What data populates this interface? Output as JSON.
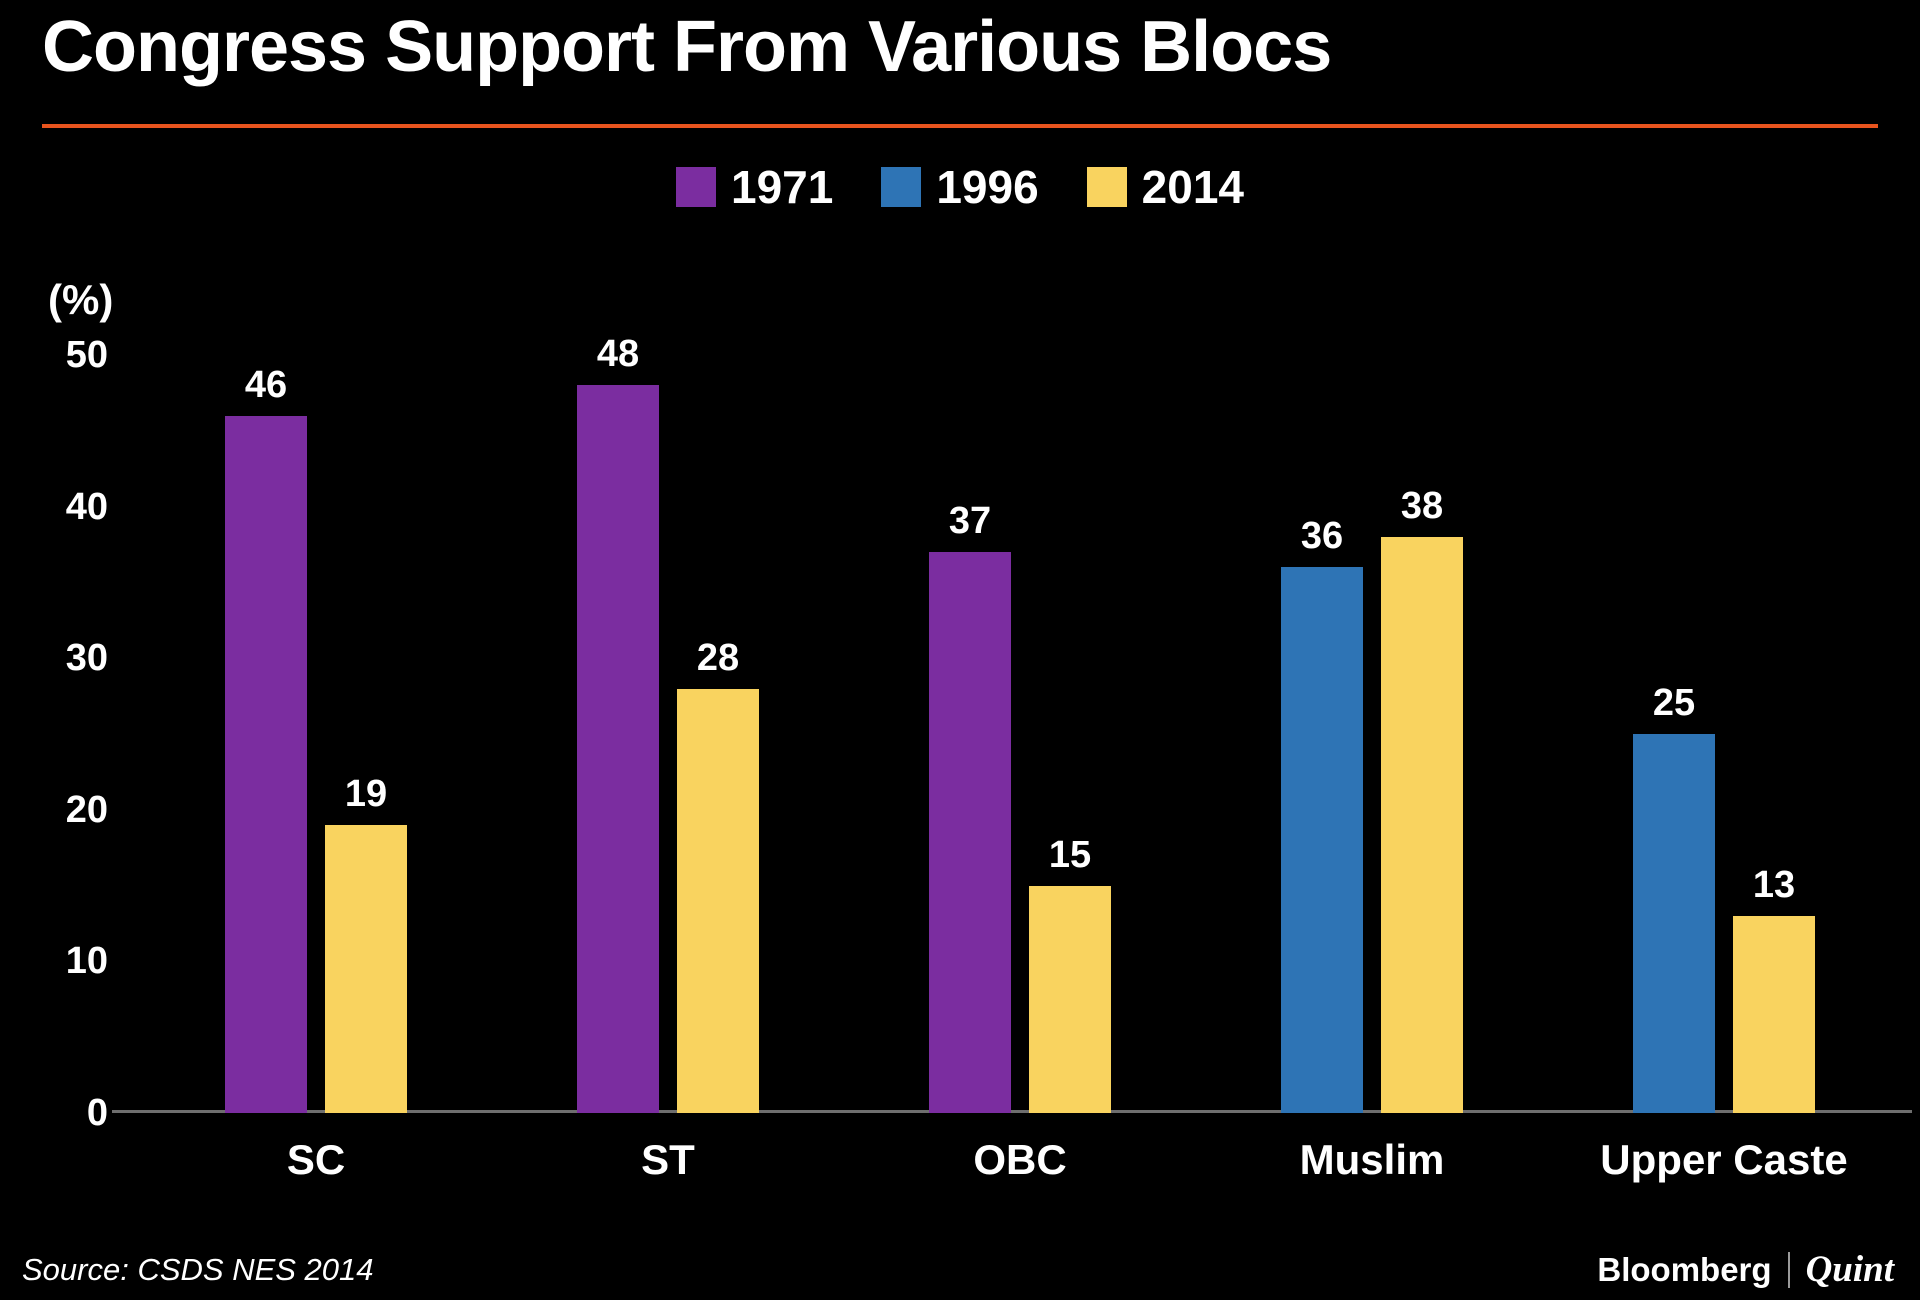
{
  "chart_data": {
    "type": "bar",
    "title": "Congress Support From Various Blocs",
    "categories": [
      "SC",
      "ST",
      "OBC",
      "Muslim",
      "Upper Caste"
    ],
    "series": [
      {
        "name": "1971",
        "color": "#7b2da0",
        "values": [
          46,
          48,
          37,
          null,
          null
        ]
      },
      {
        "name": "1996",
        "color": "#2e74b5",
        "values": [
          null,
          null,
          null,
          36,
          25
        ]
      },
      {
        "name": "2014",
        "color": "#f9d35f",
        "values": [
          19,
          28,
          15,
          38,
          13
        ]
      }
    ],
    "xlabel": "",
    "ylabel": "(%)",
    "ylim": [
      0,
      50
    ],
    "yticks": [
      0,
      10,
      20,
      30,
      40,
      50
    ],
    "legend_position": "top",
    "grid": false,
    "background_color": "#000000",
    "text_color": "#ffffff",
    "accent_line_color": "#e8541e",
    "axis_line_color": "#6e6e6e"
  },
  "source": "Source: CSDS NES 2014",
  "brand": {
    "primary": "Bloomberg",
    "secondary": "Quint"
  }
}
